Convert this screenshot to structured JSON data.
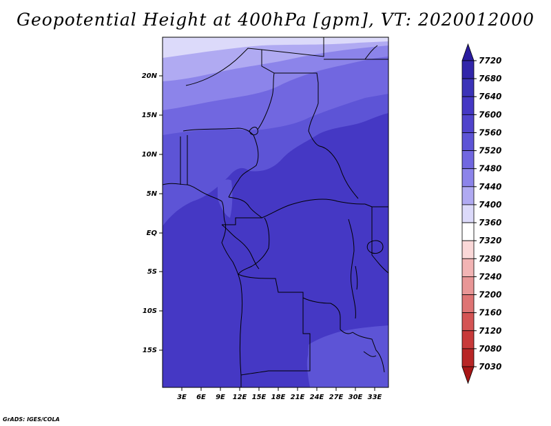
{
  "title": "Geopotential Height at 400hPa [gpm], VT: 2020012000",
  "footer": "GrADS: IGES/COLA",
  "chart_data": {
    "type": "heatmap",
    "title": "Geopotential Height at 400hPa [gpm], VT: 2020012000",
    "variable": "Geopotential Height",
    "level": "400hPa",
    "units": "gpm",
    "valid_time": "2020012000",
    "lon_range": [
      0,
      35
    ],
    "lat_range": [
      -19,
      25
    ],
    "x_ticks": [
      "3E",
      "6E",
      "9E",
      "12E",
      "15E",
      "18E",
      "21E",
      "24E",
      "27E",
      "30E",
      "33E"
    ],
    "y_ticks": [
      "20N",
      "15N",
      "10N",
      "5N",
      "EQ",
      "5S",
      "10S",
      "15S"
    ],
    "colorbar": {
      "labels": [
        "7720",
        "7680",
        "7640",
        "7600",
        "7560",
        "7520",
        "7480",
        "7440",
        "7400",
        "7360",
        "7320",
        "7280",
        "7240",
        "7200",
        "7160",
        "7120",
        "7080",
        "7030"
      ],
      "colors": [
        "#2a1ca0",
        "#3226aa",
        "#3b33b8",
        "#4538c4",
        "#5044cc",
        "#5d54d6",
        "#7167e0",
        "#8c84ea",
        "#b0aaf2",
        "#dcdafa",
        "#ffffff",
        "#fad8d8",
        "#f2b4b4",
        "#e89696",
        "#de7474",
        "#d45454",
        "#c83a3a",
        "#b82626",
        "#a81616"
      ]
    },
    "bands": [
      {
        "value": 7440,
        "color": "#dcdafa"
      },
      {
        "value": 7480,
        "color": "#b0aaf2"
      },
      {
        "value": 7520,
        "color": "#8c84ea"
      },
      {
        "value": 7560,
        "color": "#7167e0"
      },
      {
        "value": 7600,
        "color": "#5d54d6"
      },
      {
        "value": 7640,
        "color": "#4538c4"
      }
    ]
  }
}
